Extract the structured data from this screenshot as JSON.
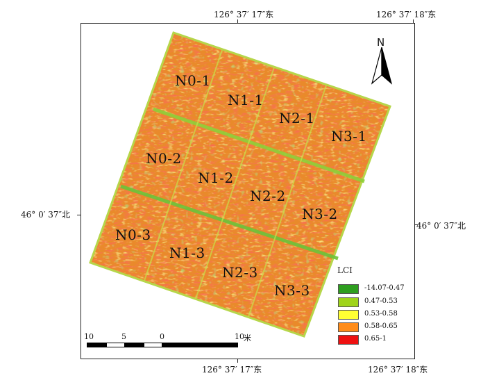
{
  "coordinates": {
    "top_left": "126° 37′ 17″东",
    "top_right": "126° 37′ 18″东",
    "bottom_left": "126° 37′ 17″东",
    "bottom_right": "126° 37′ 18″东",
    "left": "46° 0′ 37″北",
    "right": "46° 0′ 37″北"
  },
  "north_arrow": {
    "letter": "N",
    "icon": "north-arrow-icon"
  },
  "plots": [
    {
      "label": "N0-1"
    },
    {
      "label": "N1-1"
    },
    {
      "label": "N2-1"
    },
    {
      "label": "N3-1"
    },
    {
      "label": "N0-2"
    },
    {
      "label": "N1-2"
    },
    {
      "label": "N2-2"
    },
    {
      "label": "N3-2"
    },
    {
      "label": "N0-3"
    },
    {
      "label": "N1-3"
    },
    {
      "label": "N2-3"
    },
    {
      "label": "N3-3"
    }
  ],
  "legend": {
    "title": "LCI",
    "items": [
      {
        "label": "-14.07-0.47",
        "color": "#2e9e1f"
      },
      {
        "label": "0.47-0.53",
        "color": "#9fd41a"
      },
      {
        "label": "0.53-0.58",
        "color": "#ffff33"
      },
      {
        "label": "0.58-0.65",
        "color": "#ff8c1a"
      },
      {
        "label": "0.65-1",
        "color": "#ee1111"
      }
    ]
  },
  "scale_bar": {
    "ticks": [
      "10",
      "5",
      "0",
      "10"
    ],
    "unit": "米"
  },
  "colors": {
    "field_base": "#e98a2a",
    "red": "#e32a1a",
    "yellow": "#f5e23a",
    "green": "#6cc33a"
  }
}
